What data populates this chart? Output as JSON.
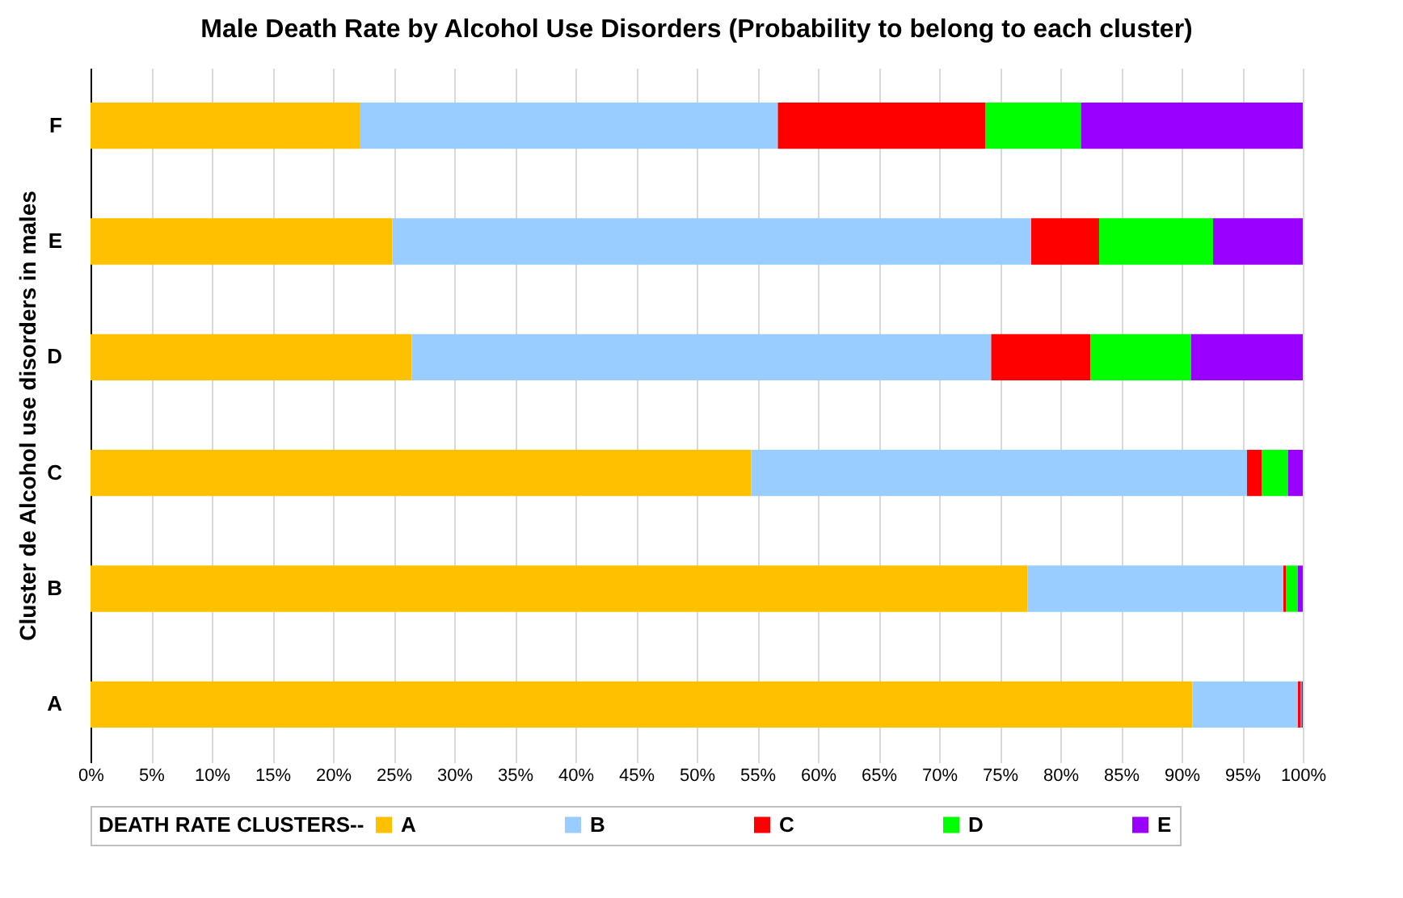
{
  "chart_data": {
    "type": "bar",
    "orientation": "horizontal",
    "stacked": true,
    "title": "Male Death Rate by Alcohol Use Disorders (Probability to belong to each cluster)",
    "ylabel": "Cluster de Alcohol use disorders in males",
    "legend_title": "DEATH RATE CLUSTERS--",
    "legend": "bottom",
    "grid": "x",
    "categories": [
      "F",
      "E",
      "D",
      "C",
      "B",
      "A"
    ],
    "series": [
      {
        "name": "A",
        "color": "#ffc000",
        "values": [
          22.2,
          24.9,
          26.5,
          54.5,
          77.3,
          90.9
        ]
      },
      {
        "name": "B",
        "color": "#99ccff",
        "values": [
          34.5,
          52.7,
          47.8,
          40.9,
          21.1,
          8.7
        ]
      },
      {
        "name": "C",
        "color": "#ff0000",
        "values": [
          17.1,
          5.6,
          8.2,
          1.2,
          0.2,
          0.2
        ]
      },
      {
        "name": "D",
        "color": "#00ff00",
        "values": [
          7.9,
          9.4,
          8.3,
          2.2,
          1.0,
          0.1
        ]
      },
      {
        "name": "E",
        "color": "#9900ff",
        "values": [
          18.3,
          7.4,
          9.2,
          1.2,
          0.4,
          0.1
        ]
      }
    ],
    "xlim": [
      0,
      100
    ],
    "xticks": [
      {
        "value": 0,
        "label": "0%"
      },
      {
        "value": 5,
        "label": "5%"
      },
      {
        "value": 10,
        "label": "10%"
      },
      {
        "value": 15,
        "label": "15%"
      },
      {
        "value": 20,
        "label": "20%"
      },
      {
        "value": 25,
        "label": "25%"
      },
      {
        "value": 30,
        "label": "30%"
      },
      {
        "value": 35,
        "label": "35%"
      },
      {
        "value": 40,
        "label": "40%"
      },
      {
        "value": 45,
        "label": "45%"
      },
      {
        "value": 50,
        "label": "50%"
      },
      {
        "value": 55,
        "label": "55%"
      },
      {
        "value": 60,
        "label": "60%"
      },
      {
        "value": 65,
        "label": "65%"
      },
      {
        "value": 70,
        "label": "70%"
      },
      {
        "value": 75,
        "label": "75%"
      },
      {
        "value": 80,
        "label": "80%"
      },
      {
        "value": 85,
        "label": "85%"
      },
      {
        "value": 90,
        "label": "90%"
      },
      {
        "value": 95,
        "label": "95%"
      },
      {
        "value": 100,
        "label": "100%"
      }
    ]
  }
}
